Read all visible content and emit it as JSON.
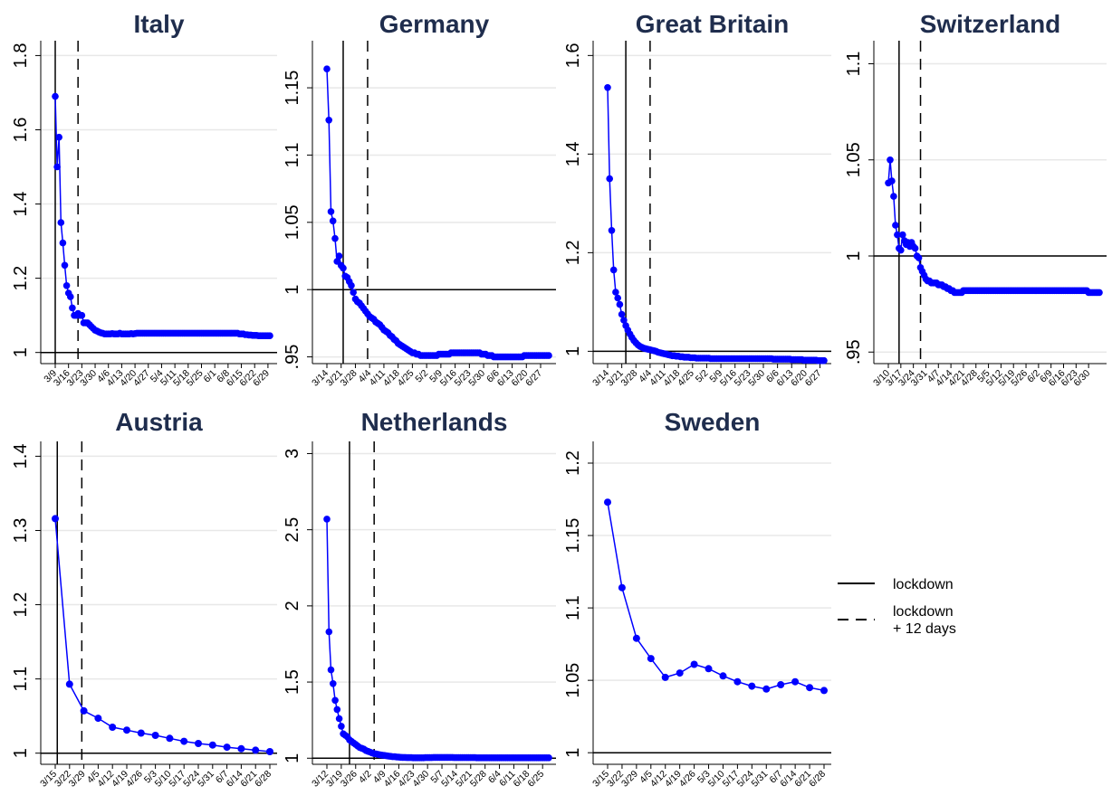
{
  "legend": {
    "lockdown": "lockdown",
    "lockdown_plus_line1": "lockdown",
    "lockdown_plus_line2": "+ 12 days"
  },
  "style": {
    "series_color": "#0000ff",
    "title_color": "#1f2d4d",
    "grid_color": "#e8e8e8"
  },
  "chart_data": [
    {
      "type": "line",
      "title": "Italy",
      "x_ticks": [
        "3/9",
        "3/16",
        "3/23",
        "3/30",
        "4/6",
        "4/13",
        "4/20",
        "4/27",
        "5/4",
        "5/11",
        "5/18",
        "5/25",
        "6/1",
        "6/8",
        "6/15",
        "6/22",
        "6/29"
      ],
      "y_ticks": [
        1,
        1.2,
        1.4,
        1.6,
        1.8
      ],
      "ylim": [
        0.97,
        1.84
      ],
      "lockdown_day": 0,
      "lockdown_12_day": 12,
      "hline": 1,
      "values": [
        1.69,
        1.5,
        1.58,
        1.35,
        1.295,
        1.235,
        1.18,
        1.16,
        1.15,
        1.12,
        1.1,
        1.1,
        1.105,
        1.1,
        1.1,
        1.08,
        1.08,
        1.08,
        1.075,
        1.07,
        1.065,
        1.06,
        1.058,
        1.055,
        1.053,
        1.052,
        1.05,
        1.05,
        1.05,
        1.05,
        1.051,
        1.05,
        1.05,
        1.05,
        1.052,
        1.05,
        1.05,
        1.05,
        1.05,
        1.05,
        1.051,
        1.05,
        1.051,
        1.052,
        1.052,
        1.052,
        1.052,
        1.052,
        1.052,
        1.052,
        1.052,
        1.052,
        1.052,
        1.052,
        1.052,
        1.052,
        1.052,
        1.052,
        1.052,
        1.052,
        1.052,
        1.052,
        1.052,
        1.052,
        1.052,
        1.052,
        1.052,
        1.052,
        1.052,
        1.052,
        1.052,
        1.052,
        1.052,
        1.052,
        1.052,
        1.052,
        1.052,
        1.052,
        1.052,
        1.052,
        1.052,
        1.052,
        1.052,
        1.052,
        1.052,
        1.052,
        1.052,
        1.052,
        1.052,
        1.052,
        1.052,
        1.052,
        1.052,
        1.052,
        1.052,
        1.052,
        1.052,
        1.05,
        1.05,
        1.05,
        1.048,
        1.048,
        1.047,
        1.047,
        1.046,
        1.046,
        1.046,
        1.045,
        1.045,
        1.045,
        1.045,
        1.045,
        1.045,
        1.045
      ]
    },
    {
      "type": "line",
      "title": "Germany",
      "x_ticks": [
        "3/14",
        "3/21",
        "3/28",
        "4/4",
        "4/11",
        "4/18",
        "4/25",
        "5/2",
        "5/9",
        "5/16",
        "5/23",
        "5/30",
        "6/6",
        "6/13",
        "6/20",
        "6/27"
      ],
      "y_ticks": [
        0.95,
        1,
        1.05,
        1.1,
        1.15
      ],
      "ylim": [
        0.945,
        1.185
      ],
      "lockdown_day": 8,
      "lockdown_12_day": 20,
      "hline": 1,
      "values": [
        1.164,
        1.126,
        1.058,
        1.051,
        1.038,
        1.021,
        1.025,
        1.018,
        1.016,
        1.01,
        1.009,
        1.006,
        1.003,
        0.998,
        0.993,
        0.991,
        0.99,
        0.988,
        0.986,
        0.984,
        0.982,
        0.98,
        0.979,
        0.978,
        0.976,
        0.975,
        0.974,
        0.972,
        0.97,
        0.969,
        0.968,
        0.966,
        0.965,
        0.963,
        0.962,
        0.96,
        0.959,
        0.958,
        0.957,
        0.956,
        0.955,
        0.954,
        0.953,
        0.953,
        0.952,
        0.952,
        0.951,
        0.951,
        0.951,
        0.951,
        0.951,
        0.951,
        0.951,
        0.951,
        0.951,
        0.952,
        0.952,
        0.952,
        0.952,
        0.952,
        0.952,
        0.953,
        0.953,
        0.953,
        0.953,
        0.953,
        0.953,
        0.953,
        0.953,
        0.953,
        0.953,
        0.953,
        0.953,
        0.953,
        0.953,
        0.953,
        0.952,
        0.952,
        0.952,
        0.951,
        0.951,
        0.951,
        0.95,
        0.95,
        0.95,
        0.95,
        0.95,
        0.95,
        0.95,
        0.95,
        0.95,
        0.95,
        0.95,
        0.95,
        0.95,
        0.95,
        0.95,
        0.951,
        0.951,
        0.951,
        0.951,
        0.951,
        0.951,
        0.951,
        0.951,
        0.951,
        0.951,
        0.951,
        0.951,
        0.951
      ]
    },
    {
      "type": "line",
      "title": "Great Britain",
      "x_ticks": [
        "3/14",
        "3/21",
        "3/28",
        "4/4",
        "4/11",
        "4/18",
        "4/25",
        "5/2",
        "5/9",
        "5/16",
        "5/23",
        "5/30",
        "6/6",
        "6/13",
        "6/20",
        "6/27"
      ],
      "y_ticks": [
        1,
        1.2,
        1.4,
        1.6
      ],
      "ylim": [
        0.975,
        1.63
      ],
      "lockdown_day": 9,
      "lockdown_12_day": 21,
      "hline": 1,
      "values": [
        1.535,
        1.35,
        1.245,
        1.165,
        1.12,
        1.108,
        1.095,
        1.075,
        1.063,
        1.052,
        1.043,
        1.035,
        1.028,
        1.022,
        1.017,
        1.013,
        1.01,
        1.008,
        1.006,
        1.005,
        1.004,
        1.003,
        1.002,
        1.001,
        1.0,
        0.998,
        0.997,
        0.996,
        0.995,
        0.994,
        0.993,
        0.992,
        0.991,
        0.991,
        0.99,
        0.99,
        0.989,
        0.989,
        0.988,
        0.988,
        0.988,
        0.987,
        0.987,
        0.987,
        0.986,
        0.986,
        0.986,
        0.986,
        0.986,
        0.986,
        0.986,
        0.985,
        0.985,
        0.985,
        0.985,
        0.985,
        0.985,
        0.985,
        0.985,
        0.985,
        0.985,
        0.985,
        0.985,
        0.985,
        0.985,
        0.985,
        0.985,
        0.985,
        0.985,
        0.985,
        0.985,
        0.985,
        0.985,
        0.985,
        0.985,
        0.985,
        0.985,
        0.985,
        0.985,
        0.985,
        0.985,
        0.985,
        0.984,
        0.984,
        0.984,
        0.984,
        0.984,
        0.984,
        0.984,
        0.984,
        0.984,
        0.983,
        0.983,
        0.983,
        0.983,
        0.983,
        0.983,
        0.982,
        0.982,
        0.982,
        0.982,
        0.982,
        0.982,
        0.982,
        0.981,
        0.981,
        0.981,
        0.981
      ]
    },
    {
      "type": "line",
      "title": "Switzerland",
      "x_ticks": [
        "3/10",
        "3/17",
        "3/24",
        "3/31",
        "4/7",
        "4/14",
        "4/21",
        "4/28",
        "5/5",
        "5/12",
        "5/19",
        "5/26",
        "6/2",
        "6/9",
        "6/16",
        "6/23",
        "6/30"
      ],
      "y_ticks": [
        0.95,
        1,
        1.05,
        1.1
      ],
      "ylim": [
        0.944,
        1.112
      ],
      "lockdown_day": 6,
      "lockdown_12_day": 18,
      "hline": 1,
      "values": [
        1.038,
        1.05,
        1.039,
        1.031,
        1.016,
        1.011,
        1.004,
        1.003,
        1.011,
        1.008,
        1.006,
        1.007,
        1.005,
        1.007,
        1.005,
        1.004,
        1.0,
        0.999,
        0.994,
        0.992,
        0.99,
        0.988,
        0.987,
        0.987,
        0.986,
        0.986,
        0.986,
        0.986,
        0.985,
        0.985,
        0.985,
        0.984,
        0.984,
        0.983,
        0.983,
        0.982,
        0.982,
        0.981,
        0.981,
        0.981,
        0.981,
        0.981,
        0.982,
        0.982,
        0.982,
        0.982,
        0.982,
        0.982,
        0.982,
        0.982,
        0.982,
        0.982,
        0.982,
        0.982,
        0.982,
        0.982,
        0.982,
        0.982,
        0.982,
        0.982,
        0.982,
        0.982,
        0.982,
        0.982,
        0.982,
        0.982,
        0.982,
        0.982,
        0.982,
        0.982,
        0.982,
        0.982,
        0.982,
        0.982,
        0.982,
        0.982,
        0.982,
        0.982,
        0.982,
        0.982,
        0.982,
        0.982,
        0.982,
        0.982,
        0.982,
        0.982,
        0.982,
        0.982,
        0.982,
        0.982,
        0.982,
        0.982,
        0.982,
        0.982,
        0.982,
        0.982,
        0.982,
        0.982,
        0.982,
        0.982,
        0.982,
        0.982,
        0.982,
        0.982,
        0.982,
        0.982,
        0.982,
        0.982,
        0.982,
        0.982,
        0.982,
        0.982,
        0.981,
        0.981,
        0.981,
        0.981,
        0.981,
        0.981,
        0.981
      ]
    },
    {
      "type": "line",
      "title": "Austria",
      "x_ticks": [
        "3/15",
        "3/22",
        "3/29",
        "4/5",
        "4/12",
        "4/19",
        "4/26",
        "5/3",
        "5/10",
        "5/17",
        "5/24",
        "5/31",
        "6/7",
        "6/14",
        "6/21",
        "6/28"
      ],
      "y_ticks": [
        1,
        1.1,
        1.2,
        1.3,
        1.4
      ],
      "ylim": [
        0.985,
        1.42
      ],
      "lockdown_day": 1,
      "lockdown_12_day": 13,
      "step_days": 7,
      "hline": 1,
      "values": [
        1.316,
        1.093,
        1.057,
        1.047,
        1.035,
        1.031,
        1.027,
        1.024,
        1.02,
        1.016,
        1.013,
        1.011,
        1.008,
        1.006,
        1.004,
        1.002
      ]
    },
    {
      "type": "line",
      "title": "Netherlands",
      "x_ticks": [
        "3/12",
        "3/19",
        "3/26",
        "4/2",
        "4/9",
        "4/16",
        "4/23",
        "4/30",
        "5/7",
        "5/14",
        "5/21",
        "5/28",
        "6/4",
        "6/11",
        "6/18",
        "6/25"
      ],
      "y_ticks": [
        1,
        1.5,
        2,
        2.5,
        3
      ],
      "ylim": [
        0.96,
        3.08
      ],
      "lockdown_day": 11,
      "lockdown_12_day": 23,
      "hline": 1,
      "values": [
        2.57,
        1.83,
        1.58,
        1.49,
        1.38,
        1.32,
        1.26,
        1.21,
        1.16,
        1.15,
        1.14,
        1.12,
        1.11,
        1.1,
        1.09,
        1.08,
        1.07,
        1.065,
        1.06,
        1.05,
        1.045,
        1.04,
        1.035,
        1.03,
        1.028,
        1.025,
        1.022,
        1.02,
        1.018,
        1.016,
        1.014,
        1.012,
        1.01,
        1.01,
        1.008,
        1.007,
        1.006,
        1.005,
        1.005,
        1.004,
        1.004,
        1.004,
        1.003,
        1.003,
        1.003,
        1.003,
        1.003,
        1.003,
        1.004,
        1.004,
        1.004,
        1.004,
        1.005,
        1.005,
        1.005,
        1.005,
        1.005,
        1.005,
        1.005,
        1.005,
        1.005,
        1.005,
        1.004,
        1.004,
        1.004,
        1.004,
        1.004,
        1.004,
        1.004,
        1.004,
        1.004,
        1.004,
        1.004,
        1.003,
        1.003,
        1.003,
        1.003,
        1.003,
        1.003,
        1.003,
        1.003,
        1.003,
        1.003,
        1.003,
        1.003,
        1.003,
        1.003,
        1.003,
        1.003,
        1.003,
        1.003,
        1.003,
        1.003,
        1.003,
        1.003,
        1.003,
        1.003,
        1.003,
        1.003,
        1.003,
        1.003,
        1.003,
        1.003,
        1.003,
        1.003,
        1.003,
        1.003,
        1.003,
        1.003
      ]
    },
    {
      "type": "line",
      "title": "Sweden",
      "x_ticks": [
        "3/15",
        "3/22",
        "3/29",
        "4/5",
        "4/12",
        "4/19",
        "4/26",
        "5/3",
        "5/10",
        "5/17",
        "5/24",
        "5/31",
        "6/7",
        "6/14",
        "6/21",
        "6/28"
      ],
      "y_ticks": [
        1,
        1.05,
        1.1,
        1.15,
        1.2
      ],
      "ylim": [
        0.992,
        1.215
      ],
      "step_days": 7,
      "hline": 1,
      "values": [
        1.173,
        1.114,
        1.079,
        1.065,
        1.052,
        1.055,
        1.061,
        1.058,
        1.053,
        1.049,
        1.046,
        1.044,
        1.047,
        1.049,
        1.045,
        1.043
      ]
    }
  ]
}
